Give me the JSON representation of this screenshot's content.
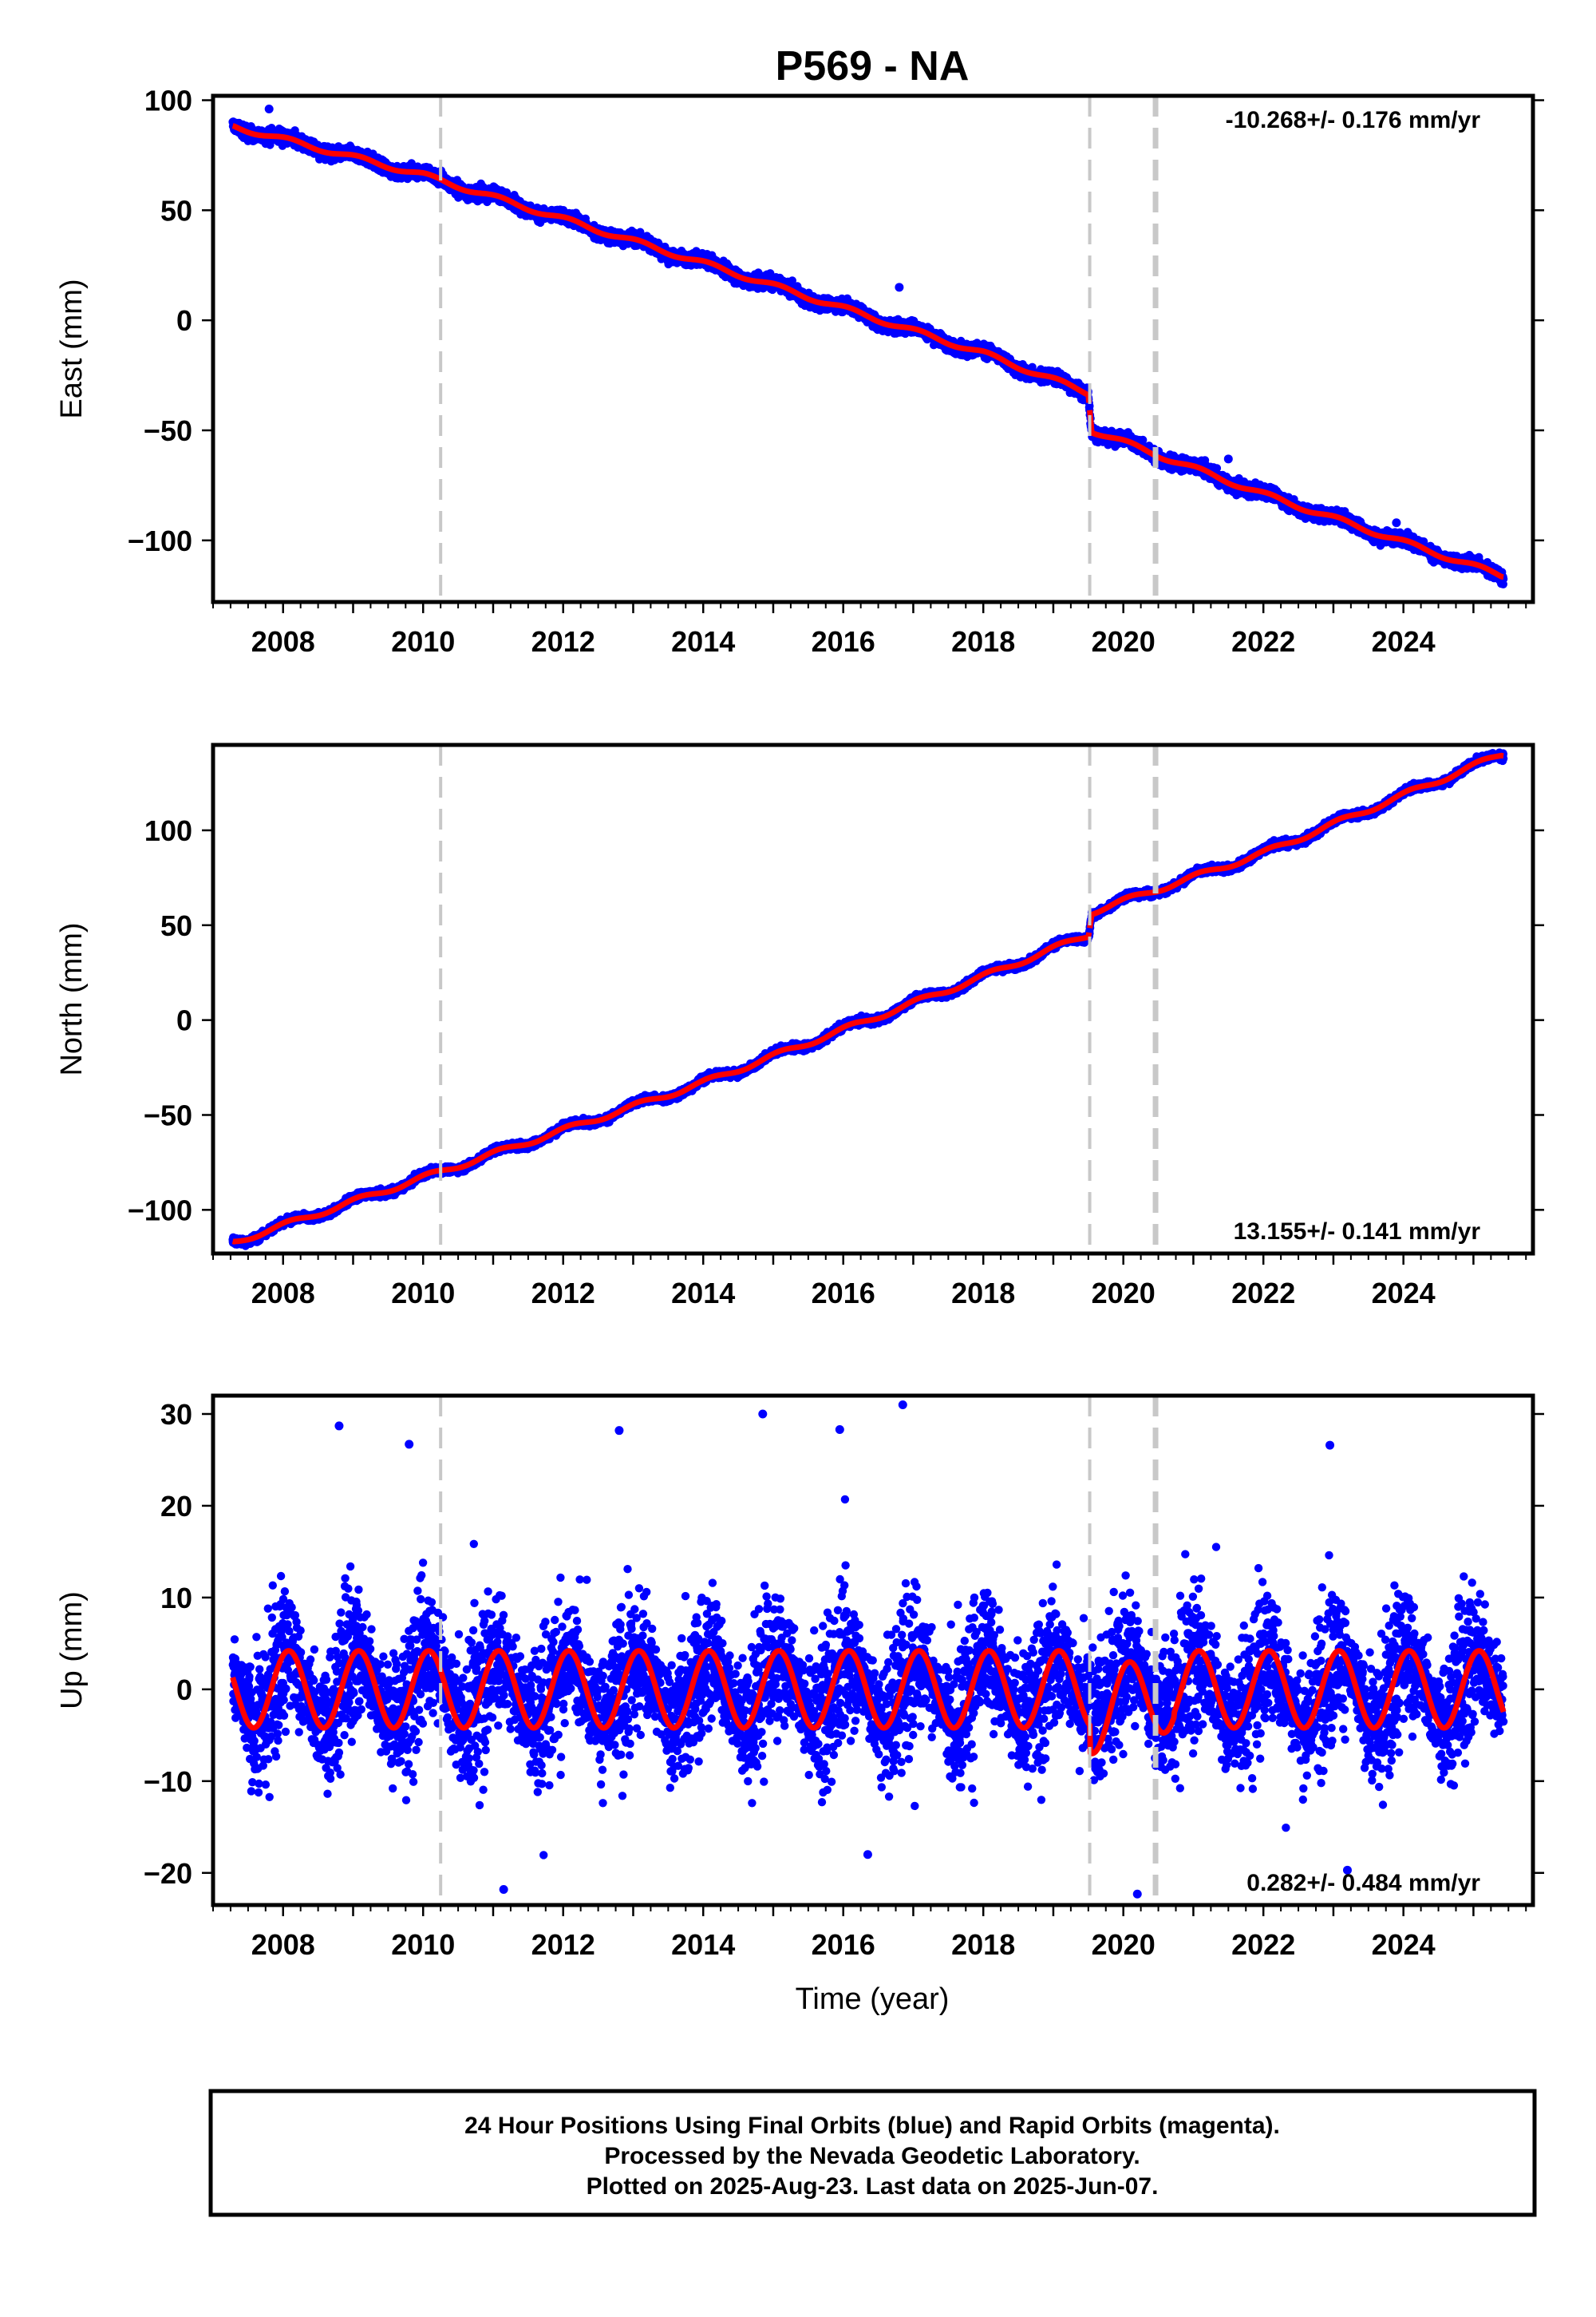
{
  "figure": {
    "title": "P569 - NA",
    "xlabel": "Time (year)",
    "footer": [
      "24 Hour Positions Using Final Orbits (blue) and Rapid Orbits (magenta).",
      "Processed by the Nevada Geodetic Laboratory.",
      "Plotted on 2025-Aug-23. Last data on 2025-Jun-07."
    ]
  },
  "colors": {
    "observations": "#0000ff",
    "model_fit": "#ff0000",
    "event_lines": "#c8c8c8",
    "frame": "#000000"
  },
  "chart_data": [
    {
      "type": "scatter",
      "component": "east",
      "ylabel": "East (mm)",
      "xlim": [
        2007.0,
        2025.85
      ],
      "ylim": [
        -128,
        102
      ],
      "xticks": [
        2008,
        2010,
        2012,
        2014,
        2016,
        2018,
        2020,
        2022,
        2024
      ],
      "yticks": [
        -100,
        -50,
        0,
        50,
        100
      ],
      "ytick_labels": [
        "−100",
        "−50",
        "0",
        "50",
        "100"
      ],
      "rate_label": "-10.268+/- 0.176 mm/yr",
      "rate_label_position": "top-right",
      "event_lines": [
        {
          "x": 2010.25,
          "style": "dashed-thin"
        },
        {
          "x": 2019.52,
          "style": "dashed-thin"
        },
        {
          "x": 2020.46,
          "style": "dashed-thick"
        }
      ],
      "series": [
        {
          "role": "observations",
          "x_range": [
            2007.28,
            2025.43
          ],
          "trend_samples": [
            {
              "x": 2007.3,
              "y": 88
            },
            {
              "x": 2010.0,
              "y": 66
            },
            {
              "x": 2014.0,
              "y": 26
            },
            {
              "x": 2018.0,
              "y": -15
            },
            {
              "x": 2019.5,
              "y": -33
            },
            {
              "x": 2019.55,
              "y": -50
            },
            {
              "x": 2022.0,
              "y": -79
            },
            {
              "x": 2025.4,
              "y": -116
            }
          ],
          "scatter_mm": 2.8,
          "outliers": [
            {
              "x": 2007.8,
              "y": 96
            },
            {
              "x": 2016.8,
              "y": 15
            },
            {
              "x": 2021.5,
              "y": -63
            },
            {
              "x": 2023.9,
              "y": -92
            }
          ]
        },
        {
          "role": "model_fit",
          "velocity_mm_per_yr": -10.268,
          "annual_amplitude_mm": 1.6,
          "offsets": [
            {
              "x": 2019.52,
              "dy": -12.5
            }
          ]
        }
      ]
    },
    {
      "type": "scatter",
      "component": "north",
      "ylabel": "North (mm)",
      "xlim": [
        2007.0,
        2025.85
      ],
      "ylim": [
        -123,
        145
      ],
      "xticks": [
        2008,
        2010,
        2012,
        2014,
        2016,
        2018,
        2020,
        2022,
        2024
      ],
      "yticks": [
        -100,
        -50,
        0,
        50,
        100
      ],
      "ytick_labels": [
        "−100",
        "−50",
        "0",
        "50",
        "100"
      ],
      "rate_label": "13.155+/- 0.141 mm/yr",
      "rate_label_position": "bottom-right",
      "event_lines": [
        {
          "x": 2010.25,
          "style": "dashed-thin"
        },
        {
          "x": 2019.52,
          "style": "dashed-thin"
        },
        {
          "x": 2020.46,
          "style": "dashed-thick"
        }
      ],
      "series": [
        {
          "role": "observations",
          "x_range": [
            2007.28,
            2025.43
          ],
          "trend_samples": [
            {
              "x": 2007.3,
              "y": -117
            },
            {
              "x": 2010.0,
              "y": -83
            },
            {
              "x": 2014.0,
              "y": -33
            },
            {
              "x": 2018.0,
              "y": 23
            },
            {
              "x": 2019.5,
              "y": 45
            },
            {
              "x": 2019.55,
              "y": 57
            },
            {
              "x": 2022.0,
              "y": 88
            },
            {
              "x": 2025.4,
              "y": 140
            }
          ],
          "scatter_mm": 1.8,
          "outliers": []
        },
        {
          "role": "model_fit",
          "velocity_mm_per_yr": 13.155,
          "annual_amplitude_mm": 2.0,
          "offsets": [
            {
              "x": 2019.52,
              "dy": 11.0
            }
          ]
        }
      ]
    },
    {
      "type": "scatter",
      "component": "up",
      "ylabel": "Up (mm)",
      "xlim": [
        2007.0,
        2025.85
      ],
      "ylim": [
        -23.5,
        32
      ],
      "xticks": [
        2008,
        2010,
        2012,
        2014,
        2016,
        2018,
        2020,
        2022,
        2024
      ],
      "yticks": [
        -20,
        -10,
        0,
        10,
        20,
        30
      ],
      "ytick_labels": [
        "−20",
        "−10",
        "0",
        "10",
        "20",
        "30"
      ],
      "rate_label": "0.282+/- 0.484 mm/yr",
      "rate_label_position": "bottom-right",
      "event_lines": [
        {
          "x": 2010.25,
          "style": "dashed-thin"
        },
        {
          "x": 2019.52,
          "style": "dashed-thin"
        },
        {
          "x": 2020.46,
          "style": "dashed-thick"
        }
      ],
      "series": [
        {
          "role": "observations",
          "x_range": [
            2007.28,
            2025.43
          ],
          "trend_samples": [
            {
              "x": 2007.3,
              "y": 0
            },
            {
              "x": 2025.4,
              "y": 0
            }
          ],
          "scatter_mm": 4.6,
          "outliers": [
            {
              "x": 2008.8,
              "y": 28.7
            },
            {
              "x": 2009.8,
              "y": 26.7
            },
            {
              "x": 2012.8,
              "y": 28.2
            },
            {
              "x": 2014.85,
              "y": 30.0
            },
            {
              "x": 2015.95,
              "y": 28.3
            },
            {
              "x": 2016.85,
              "y": 31.0
            },
            {
              "x": 2022.95,
              "y": 26.6
            },
            {
              "x": 2011.15,
              "y": -21.8
            },
            {
              "x": 2020.2,
              "y": -22.3
            },
            {
              "x": 2023.2,
              "y": -19.7
            },
            {
              "x": 2016.35,
              "y": -18.0
            }
          ]
        },
        {
          "role": "model_fit",
          "velocity_mm_per_yr": 0.282,
          "annual_amplitude_mm": 4.2,
          "offsets": [
            {
              "x": 2019.52,
              "dy": -3.0
            }
          ]
        }
      ]
    }
  ]
}
